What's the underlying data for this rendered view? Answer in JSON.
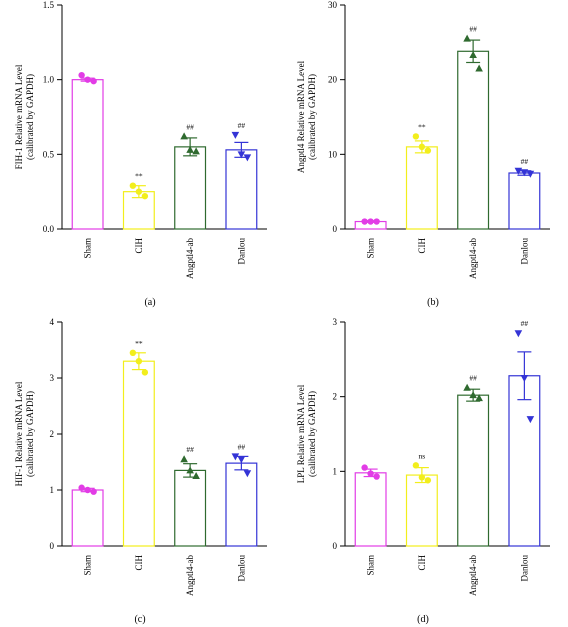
{
  "chart_data": [
    {
      "type": "bar",
      "panel_label": "(a)",
      "ylabel_line1": "FIH-1 Relative mRNA Level",
      "ylabel_line2": "(calibrated by GAPDH)",
      "ylim": [
        0,
        1.5
      ],
      "yticks": [
        "0.0",
        "0.5",
        "1.0",
        "1.5"
      ],
      "ytick_values": [
        0,
        0.5,
        1.0,
        1.5
      ],
      "categories": [
        "Sham",
        "CIH",
        "Angptl4-ab",
        "Danlou"
      ],
      "values": [
        1.0,
        0.25,
        0.55,
        0.53
      ],
      "errors": [
        0.01,
        0.04,
        0.06,
        0.05
      ],
      "points": [
        [
          1.03,
          1.0,
          0.99
        ],
        [
          0.29,
          0.25,
          0.22
        ],
        [
          0.62,
          0.53,
          0.52
        ],
        [
          0.63,
          0.5,
          0.48
        ]
      ],
      "annotations": [
        "",
        "**",
        "##",
        "##"
      ]
    },
    {
      "type": "bar",
      "panel_label": "(b)",
      "ylabel_line1": "Angptl4 Relative mRNA Level",
      "ylabel_line2": "(calibrated by GAPDH)",
      "ylim": [
        0,
        30
      ],
      "yticks": [
        "0",
        "10",
        "20",
        "30"
      ],
      "ytick_values": [
        0,
        10,
        20,
        30
      ],
      "categories": [
        "Sham",
        "CIH",
        "Angptl4-ab",
        "Danlou"
      ],
      "values": [
        1.0,
        11.0,
        23.8,
        7.5
      ],
      "errors": [
        0.1,
        0.8,
        1.5,
        0.3
      ],
      "points": [
        [
          1.0,
          1.0,
          1.0
        ],
        [
          12.4,
          11.0,
          10.5
        ],
        [
          25.5,
          23.3,
          21.5
        ],
        [
          7.8,
          7.6,
          7.4
        ]
      ],
      "annotations": [
        "",
        "**",
        "##",
        "##"
      ]
    },
    {
      "type": "bar",
      "panel_label": "(c)",
      "ylabel_line1": "HIF-1 Relative mRNA Level",
      "ylabel_line2": "(calibrated by GAPDH)",
      "ylim": [
        0,
        4
      ],
      "yticks": [
        "0",
        "1",
        "2",
        "3",
        "4"
      ],
      "ytick_values": [
        0,
        1,
        2,
        3,
        4
      ],
      "categories": [
        "Sham",
        "CIH",
        "Angptl4-ab",
        "Danlou"
      ],
      "values": [
        1.0,
        3.3,
        1.35,
        1.48
      ],
      "errors": [
        0.03,
        0.15,
        0.12,
        0.12
      ],
      "points": [
        [
          1.04,
          1.0,
          0.97
        ],
        [
          3.45,
          3.3,
          3.1
        ],
        [
          1.55,
          1.35,
          1.25
        ],
        [
          1.6,
          1.55,
          1.3
        ]
      ],
      "annotations": [
        "",
        "**",
        "##",
        "##"
      ]
    },
    {
      "type": "bar",
      "panel_label": "(d)",
      "ylabel_line1": "LPL Relative mRNA Level",
      "ylabel_line2": "(calibrated by GAPDH)",
      "ylim": [
        0,
        3
      ],
      "yticks": [
        "0",
        "1",
        "2",
        "3"
      ],
      "ytick_values": [
        0,
        1,
        2,
        3
      ],
      "categories": [
        "Sham",
        "CIH",
        "Angptl4-ab",
        "Danlou"
      ],
      "values": [
        0.98,
        0.95,
        2.02,
        2.28
      ],
      "errors": [
        0.05,
        0.1,
        0.08,
        0.32
      ],
      "points": [
        [
          1.05,
          0.97,
          0.93
        ],
        [
          1.08,
          0.92,
          0.88
        ],
        [
          2.12,
          2.02,
          1.98
        ],
        [
          2.85,
          2.25,
          1.7
        ]
      ],
      "annotations": [
        "",
        "ns",
        "##",
        "##"
      ]
    }
  ],
  "colors": {
    "sham": "#e23ce6",
    "cih": "#f2ee1c",
    "angptl4": "#2f6a2f",
    "danlou": "#3434d6"
  },
  "markers": [
    "circle",
    "circle",
    "triangle-up",
    "triangle-down"
  ]
}
